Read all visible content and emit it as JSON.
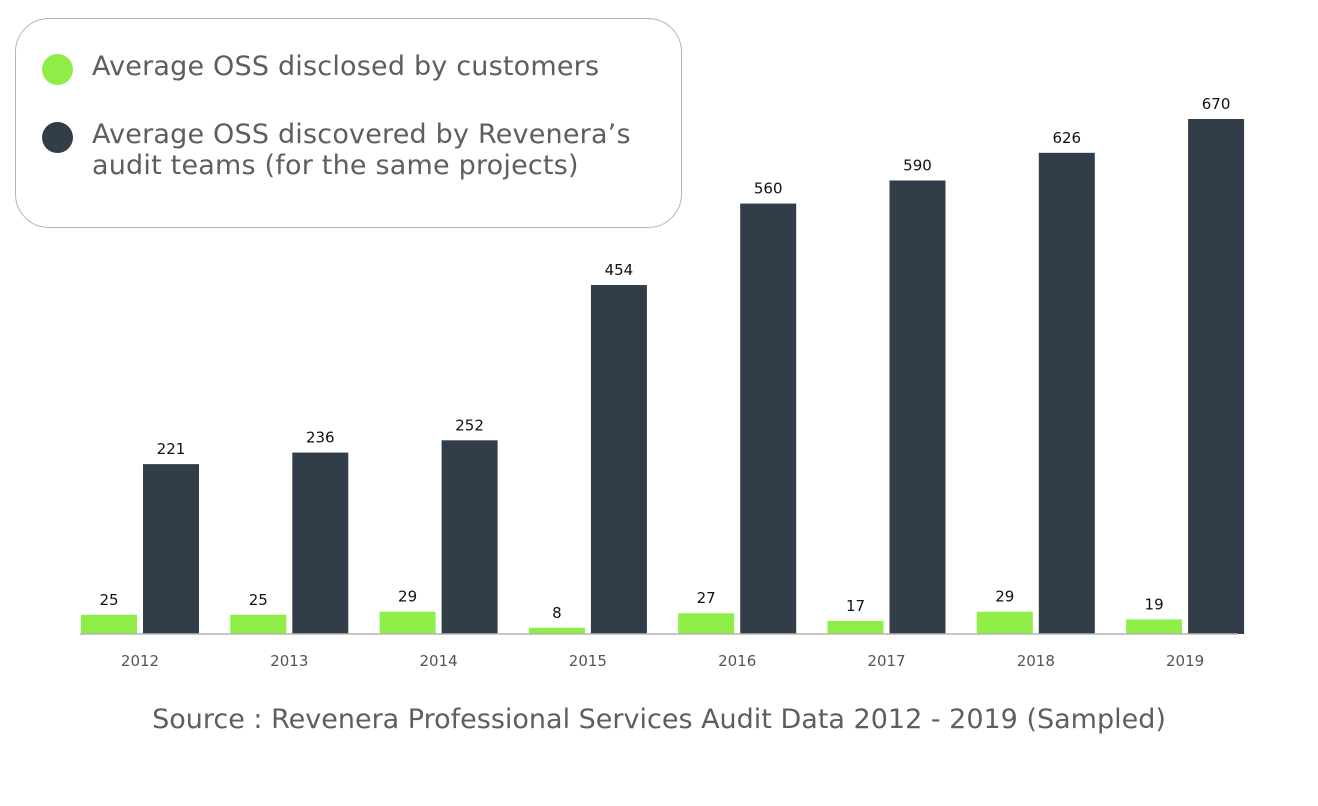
{
  "chart_data": {
    "type": "bar",
    "title": "",
    "xlabel": "",
    "ylabel": "",
    "categories": [
      "2012",
      "2013",
      "2014",
      "2015",
      "2016",
      "2017",
      "2018",
      "2019"
    ],
    "series": [
      {
        "name": "Average OSS disclosed by customers",
        "color": "#8eed47",
        "values": [
          25,
          25,
          29,
          8,
          27,
          17,
          29,
          19
        ]
      },
      {
        "name": "Average OSS discovered by Revenera’s audit teams (for the same projects)",
        "color": "#313d48",
        "values": [
          221,
          236,
          252,
          454,
          560,
          590,
          626,
          670
        ]
      }
    ],
    "ylim": [
      0,
      670
    ],
    "grid": false,
    "legend_position": "top-left",
    "data_labels": true,
    "source": "Source : Revenera Professional Services Audit Data 2012 - 2019 (Sampled)"
  },
  "colors": {
    "axis": "#b5b5b5",
    "label": "#111111",
    "tick": "#555555"
  }
}
